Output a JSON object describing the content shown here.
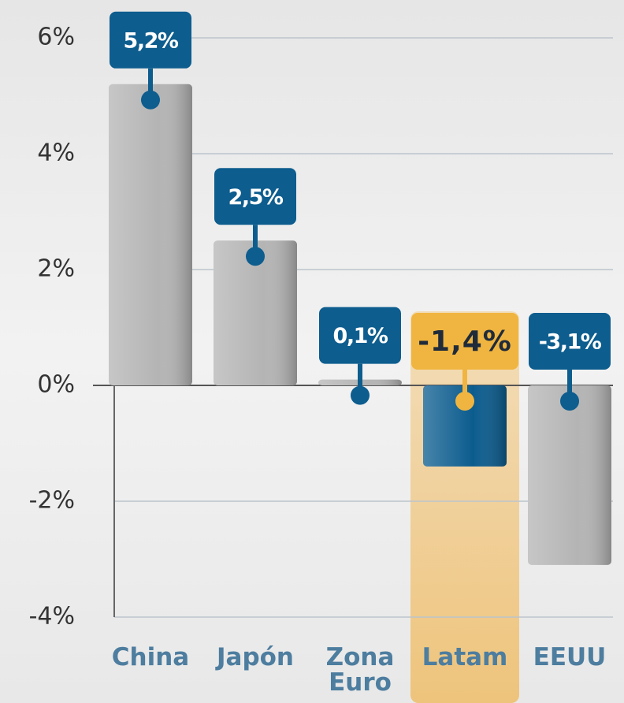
{
  "chart_data": {
    "type": "bar",
    "categories": [
      "China",
      "Japón",
      "Zona Euro",
      "Latam",
      "EEUU"
    ],
    "values": [
      5.2,
      2.5,
      0.1,
      -1.4,
      -3.1
    ],
    "value_labels": [
      "5,2%",
      "2,5%",
      "0,1%",
      "-1,4%",
      "-3,1%"
    ],
    "colors": [
      "#b4b4b4",
      "#b4b4b4",
      "#b4b4b4",
      "#0b5c8e",
      "#b4b4b4"
    ],
    "label_colors": [
      "#0d5d8e",
      "#0d5d8e",
      "#0d5d8e",
      "#f0b540",
      "#0d5d8e"
    ],
    "highlight": [
      false,
      false,
      false,
      true,
      false
    ],
    "ylim": [
      -4,
      6
    ],
    "yticks": [
      {
        "value": -4,
        "label": "-4%"
      },
      {
        "value": -2,
        "label": "-2%"
      },
      {
        "value": 0,
        "label": "0%"
      },
      {
        "value": 2,
        "label": "2%"
      },
      {
        "value": 4,
        "label": "4%"
      },
      {
        "value": 6,
        "label": "6%"
      }
    ],
    "grid": true
  }
}
